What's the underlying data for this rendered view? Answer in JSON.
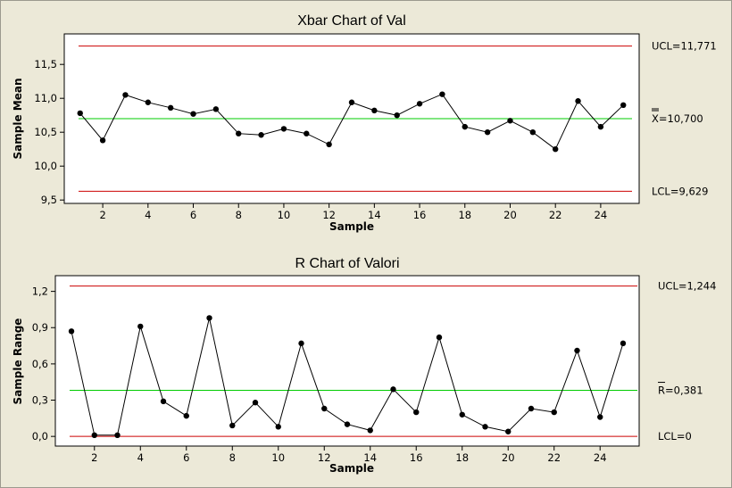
{
  "chart_data": [
    {
      "type": "line",
      "title": "Xbar Chart of Val",
      "xlabel": "Sample",
      "ylabel": "Sample Mean",
      "x": [
        1,
        2,
        3,
        4,
        5,
        6,
        7,
        8,
        9,
        10,
        11,
        12,
        13,
        14,
        15,
        16,
        17,
        18,
        19,
        20,
        21,
        22,
        23,
        24,
        25
      ],
      "values": [
        10.78,
        10.38,
        11.05,
        10.94,
        10.86,
        10.77,
        10.84,
        10.48,
        10.46,
        10.55,
        10.48,
        10.32,
        10.94,
        10.82,
        10.75,
        10.92,
        11.06,
        10.58,
        10.5,
        10.67,
        10.5,
        10.25,
        10.96,
        10.58,
        10.9
      ],
      "xticks": [
        2,
        4,
        6,
        8,
        10,
        12,
        14,
        16,
        18,
        20,
        22,
        24
      ],
      "yticks": [
        9.5,
        10.0,
        10.5,
        11.0,
        11.5
      ],
      "ytick_labels": [
        "9,5",
        "10,0",
        "10,5",
        "11,0",
        "11,5"
      ],
      "xlim": [
        0.3,
        25.7
      ],
      "ylim": [
        9.45,
        11.95
      ],
      "ucl": 11.771,
      "center": 10.7,
      "lcl": 9.629,
      "ucl_label": "UCL=11,771",
      "center_label": "X=10,700",
      "lcl_label": "LCL=9,629",
      "limit_color": "#cc0000",
      "center_color": "#00cc00",
      "line_color": "#000000",
      "grid": false
    },
    {
      "type": "line",
      "title": "R Chart of Valori",
      "xlabel": "Sample",
      "ylabel": "Sample Range",
      "x": [
        1,
        2,
        3,
        4,
        5,
        6,
        7,
        8,
        9,
        10,
        11,
        12,
        13,
        14,
        15,
        16,
        17,
        18,
        19,
        20,
        21,
        22,
        23,
        24,
        25
      ],
      "values": [
        0.87,
        0.01,
        0.01,
        0.91,
        0.29,
        0.17,
        0.98,
        0.09,
        0.28,
        0.08,
        0.77,
        0.23,
        0.1,
        0.05,
        0.39,
        0.2,
        0.82,
        0.18,
        0.08,
        0.04,
        0.23,
        0.2,
        0.71,
        0.16,
        0.77
      ],
      "xticks": [
        2,
        4,
        6,
        8,
        10,
        12,
        14,
        16,
        18,
        20,
        22,
        24
      ],
      "yticks": [
        0.0,
        0.3,
        0.6,
        0.9,
        1.2
      ],
      "ytick_labels": [
        "0,0",
        "0,3",
        "0,6",
        "0,9",
        "1,2"
      ],
      "xlim": [
        0.3,
        25.7
      ],
      "ylim": [
        -0.08,
        1.33
      ],
      "ucl": 1.244,
      "center": 0.381,
      "lcl": 0,
      "ucl_label": "UCL=1,244",
      "center_label": "R=0,381",
      "lcl_label": "LCL=0",
      "limit_color": "#cc0000",
      "center_color": "#00cc00",
      "line_color": "#000000",
      "grid": false
    }
  ]
}
